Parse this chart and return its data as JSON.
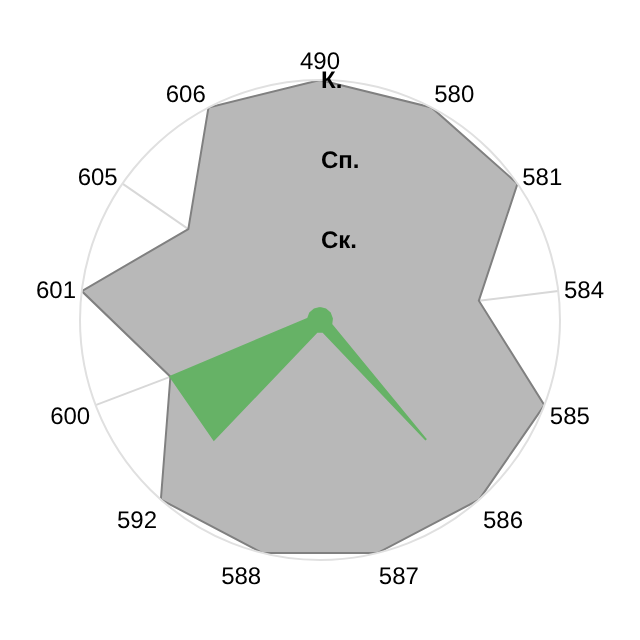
{
  "chart_data": {
    "type": "radar",
    "categories": [
      "490",
      "580",
      "581",
      "584",
      "585",
      "586",
      "587",
      "588",
      "592",
      "600",
      "601",
      "605",
      "606"
    ],
    "series": [
      {
        "color": "#b8b8b8",
        "values": [
          3.0,
          3.0,
          3.0,
          2.0,
          3.0,
          3.0,
          3.0,
          3.0,
          3.0,
          2.0,
          3.0,
          2.0,
          3.0
        ]
      },
      {
        "color": "#66b266",
        "values": [
          0.15,
          0.15,
          0.15,
          0.15,
          0.15,
          2.0,
          0.15,
          0.15,
          2.0,
          2.0,
          0.15,
          0.15,
          0.15
        ]
      }
    ],
    "ylim": [
      0,
      3
    ],
    "yticks": [
      {
        "value": 1,
        "label": "Ск."
      },
      {
        "value": 2,
        "label": "Сп."
      },
      {
        "value": 3,
        "label": "К."
      }
    ],
    "grid": true
  }
}
